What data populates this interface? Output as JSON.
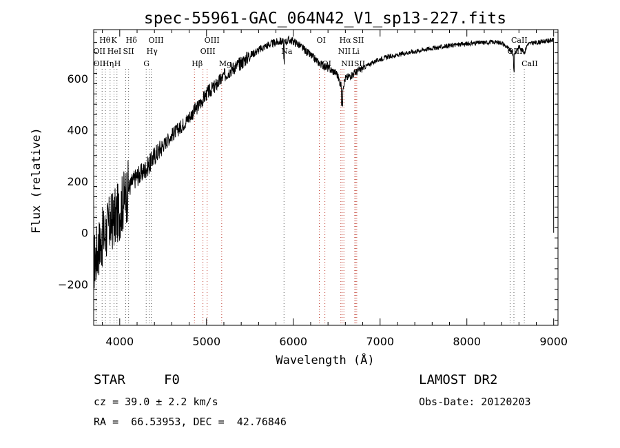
{
  "chart_data": {
    "type": "line",
    "title": "spec-55961-GAC_064N42_V1_sp13-227.fits",
    "xlabel": "Wavelength (Å)",
    "ylabel": "Flux (relative)",
    "xlim": [
      3700,
      9050
    ],
    "ylim": [
      -360,
      790
    ],
    "x_ticks": [
      4000,
      5000,
      6000,
      7000,
      8000,
      9000
    ],
    "y_ticks": [
      -200,
      0,
      200,
      400,
      600
    ],
    "grid": false,
    "series": [
      {
        "x": [
          3700,
          3750,
          3800,
          3850,
          3900,
          3950,
          4000,
          4050,
          4100,
          4150,
          4200,
          4250,
          4300,
          4350,
          4400,
          4500,
          4600,
          4700,
          4800,
          4850,
          4900,
          5000,
          5100,
          5200,
          5300,
          5400,
          5500,
          5600,
          5700,
          5800,
          5850,
          5900,
          5950,
          6000,
          6050,
          6100,
          6200,
          6300,
          6400,
          6500,
          6563,
          6600,
          6650,
          6700,
          6800,
          6900,
          7000,
          7100,
          7200,
          7300,
          7400,
          7500,
          7600,
          7700,
          7800,
          7900,
          8000,
          8100,
          8200,
          8300,
          8400,
          8498,
          8542,
          8600,
          8662,
          8700,
          8800,
          8900,
          9000
        ],
        "y": [
          -120,
          -60,
          -20,
          10,
          40,
          60,
          90,
          130,
          170,
          200,
          220,
          230,
          250,
          270,
          300,
          340,
          380,
          410,
          450,
          470,
          490,
          540,
          570,
          610,
          640,
          660,
          690,
          710,
          730,
          740,
          745,
          740,
          750,
          745,
          735,
          720,
          690,
          660,
          640,
          620,
          560,
          600,
          610,
          620,
          640,
          660,
          675,
          685,
          690,
          700,
          705,
          712,
          718,
          722,
          728,
          732,
          735,
          738,
          740,
          742,
          740,
          710,
          690,
          725,
          700,
          735,
          740,
          745,
          750
        ]
      }
    ],
    "spectral_lines": [
      {
        "label": "Hθ",
        "x": 3797,
        "row": 0
      },
      {
        "label": "K",
        "x": 3934,
        "row": 0
      },
      {
        "label": "Hδ",
        "x": 4102,
        "row": 0
      },
      {
        "label": "OIII",
        "x": 4363,
        "row": 0
      },
      {
        "label": "OIII",
        "x": 5007,
        "row": 0
      },
      {
        "label": "OI",
        "x": 6300,
        "row": 0
      },
      {
        "label": "Hα",
        "x": 6563,
        "row": 0
      },
      {
        "label": "SII",
        "x": 6717,
        "row": 0
      },
      {
        "label": "CaII",
        "x": 8542,
        "row": 0
      },
      {
        "label": "OII",
        "x": 3727,
        "row": 1
      },
      {
        "label": "HeI",
        "x": 3889,
        "row": 1
      },
      {
        "label": "SII",
        "x": 4069,
        "row": 1
      },
      {
        "label": "Hγ",
        "x": 4340,
        "row": 1
      },
      {
        "label": "OIII",
        "x": 4959,
        "row": 1
      },
      {
        "label": "Na",
        "x": 5893,
        "row": 1
      },
      {
        "label": "NII",
        "x": 6548,
        "row": 1
      },
      {
        "label": "Li",
        "x": 6708,
        "row": 1
      },
      {
        "label": "OIII",
        "x": 8498,
        "row": 1
      },
      {
        "label": "OII",
        "x": 3729,
        "row": 2
      },
      {
        "label": "Hη",
        "x": 3835,
        "row": 2
      },
      {
        "label": "H",
        "x": 3968,
        "row": 2
      },
      {
        "label": "G",
        "x": 4305,
        "row": 2
      },
      {
        "label": "Hβ",
        "x": 4861,
        "row": 2
      },
      {
        "label": "Mg",
        "x": 5175,
        "row": 2
      },
      {
        "label": "OI",
        "x": 6364,
        "row": 2
      },
      {
        "label": "NII",
        "x": 6583,
        "row": 2
      },
      {
        "label": "SII",
        "x": 6731,
        "row": 2
      },
      {
        "label": "CaII",
        "x": 8662,
        "row": 2
      }
    ]
  },
  "info": {
    "object_type": "STAR",
    "subclass": "F0",
    "survey": "LAMOST DR2",
    "redshift": "cz = 39.0 ± 2.2 km/s",
    "obs_date": "Obs-Date: 20120203",
    "coords": "RA =  66.53953, DEC =  42.76846"
  }
}
